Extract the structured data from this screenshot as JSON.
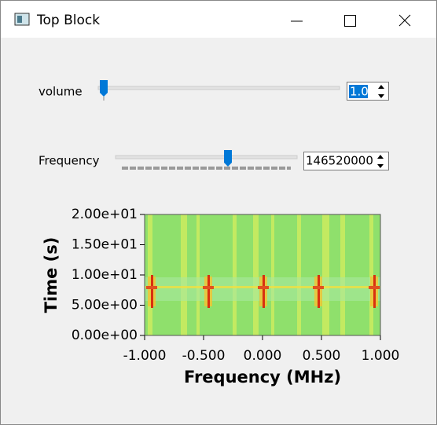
{
  "window": {
    "title": "Top Block"
  },
  "controls": [
    {
      "label": "volume",
      "value": "1.0"
    },
    {
      "label": "Frequency",
      "value": "146520000"
    }
  ],
  "chart_data": {
    "type": "waterfall",
    "xlabel": "Frequency (MHz)",
    "ylabel": "Time (s)",
    "xlim": [
      -1,
      1
    ],
    "ylim": [
      0,
      20
    ],
    "xticks": [
      {
        "value": -1,
        "label": "-1.000"
      },
      {
        "value": -0.5,
        "label": "-0.500"
      },
      {
        "value": 0,
        "label": "0.000"
      },
      {
        "value": 0.5,
        "label": "0.500"
      },
      {
        "value": 1,
        "label": "1.000"
      }
    ],
    "yticks": [
      {
        "value": 0,
        "label": "0.00e+00"
      },
      {
        "value": 5,
        "label": "5.00e+00"
      },
      {
        "value": 10,
        "label": "1.00e+01"
      },
      {
        "value": 15,
        "label": "1.50e+01"
      },
      {
        "value": 20,
        "label": "2.00e+01"
      }
    ]
  }
}
